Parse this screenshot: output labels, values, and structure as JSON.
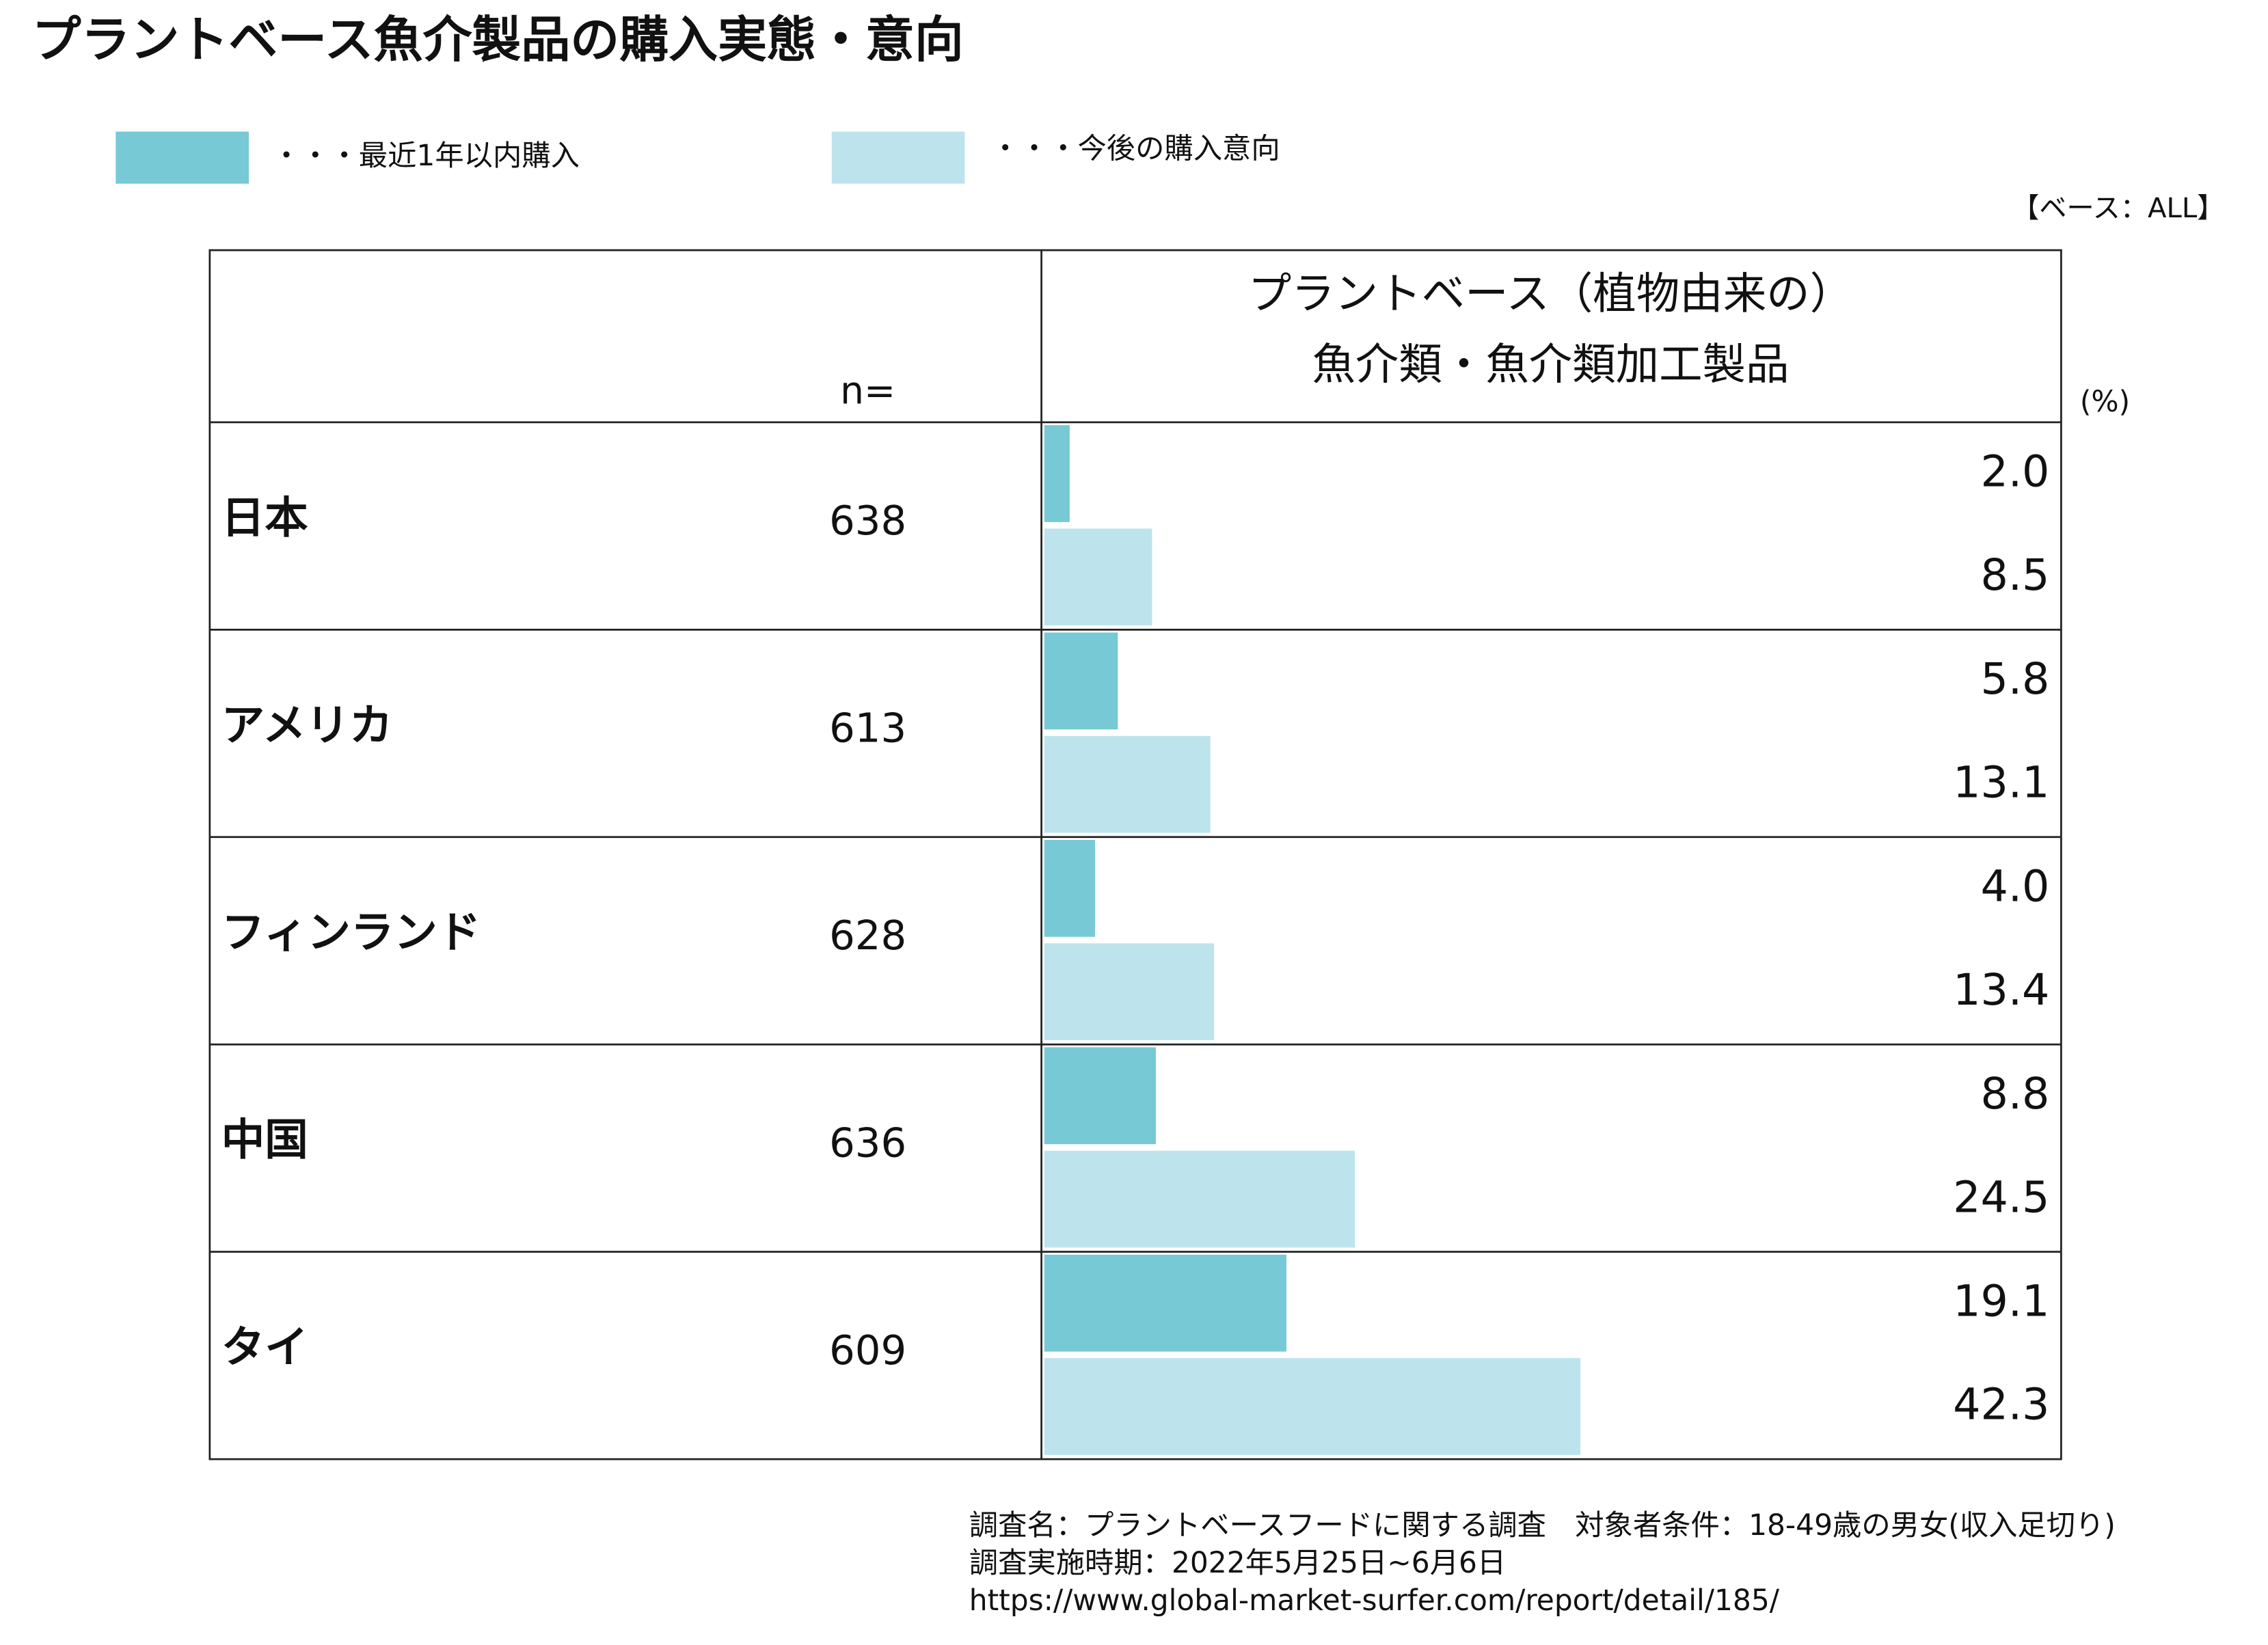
{
  "chart_data": {
    "type": "bar",
    "title": "プラントベース魚介製品の購入実態・意向",
    "base_note": "【ベース：ALL】",
    "column_header": [
      "プラントベース（植物由来の）",
      "魚介類・魚介類加工製品"
    ],
    "n_label": "n=",
    "unit_label": "(%)",
    "categories": [
      "日本",
      "アメリカ",
      "フィンランド",
      "中国",
      "タイ"
    ],
    "n_values": [
      638,
      613,
      628,
      636,
      609
    ],
    "series": [
      {
        "name": "・・・最近1年以内購入",
        "color": "#77c9d6",
        "values": [
          2.0,
          5.8,
          4.0,
          8.8,
          19.1
        ],
        "value_labels": [
          "2.0",
          "5.8",
          "4.0",
          "8.8",
          "19.1"
        ]
      },
      {
        "name": "・・・今後の購入意向",
        "color": "#bde4ec",
        "values": [
          8.5,
          13.1,
          13.4,
          24.5,
          42.3
        ],
        "value_labels": [
          "8.5",
          "13.1",
          "13.4",
          "24.5",
          "42.3"
        ]
      }
    ],
    "xlim": [
      0,
      80
    ],
    "footer": [
      "調査名：プラントベースフードに関する調査　対象者条件：18-49歳の男女(収入足切り)",
      "調査実施時期：2022年5月25日~6月6日",
      "https://www.global-market-surfer.com/report/detail/185/"
    ]
  }
}
